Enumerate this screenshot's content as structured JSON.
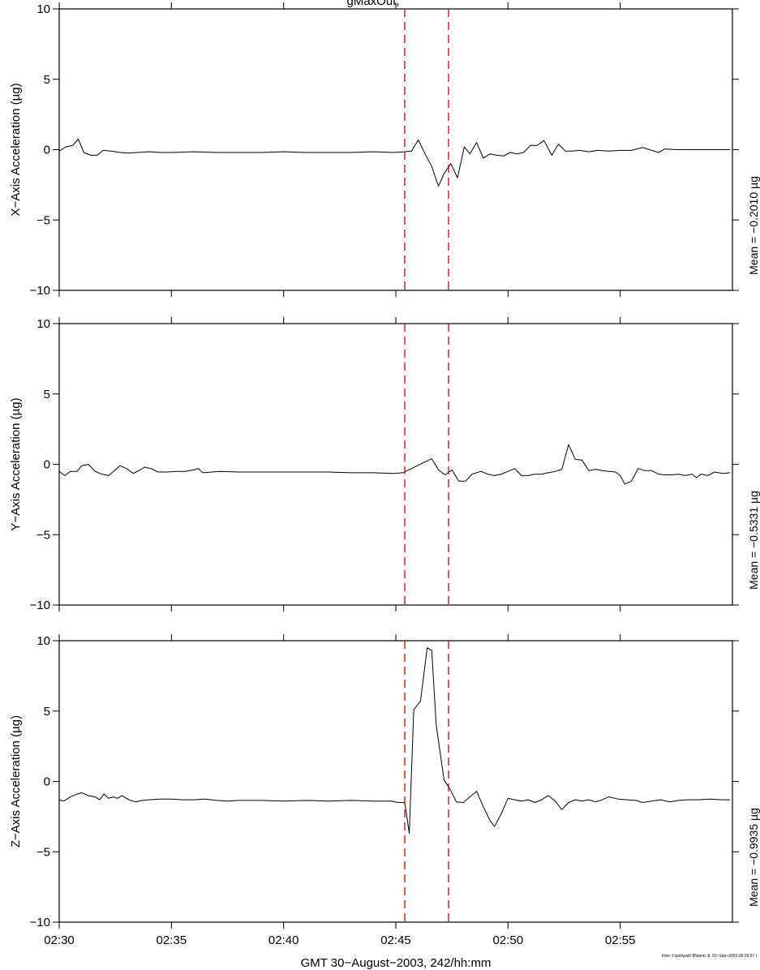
{
  "chart_data": [
    {
      "type": "line",
      "ylabel": "X−Axis Acceleration (µg)",
      "mean_label": "Mean = −0.2010 µg",
      "ylim": [
        -10,
        10
      ],
      "yticks": [
        -10,
        -5,
        0,
        5,
        10
      ],
      "ytick_labels": [
        "−10",
        "−5",
        "0",
        "5",
        "10"
      ],
      "series": [
        {
          "values": [
            [
              0.0,
              -0.1
            ],
            [
              0.3,
              0.2
            ],
            [
              0.6,
              0.3
            ],
            [
              0.85,
              0.75
            ],
            [
              1.1,
              -0.2
            ],
            [
              1.4,
              -0.4
            ],
            [
              1.7,
              -0.4
            ],
            [
              1.95,
              -0.05
            ],
            [
              2.3,
              -0.1
            ],
            [
              2.7,
              -0.2
            ],
            [
              3.1,
              -0.25
            ],
            [
              3.5,
              -0.2
            ],
            [
              4.0,
              -0.15
            ],
            [
              4.5,
              -0.2
            ],
            [
              5.0,
              -0.2
            ],
            [
              6.0,
              -0.15
            ],
            [
              7.0,
              -0.2
            ],
            [
              8.0,
              -0.2
            ],
            [
              9.0,
              -0.2
            ],
            [
              10.0,
              -0.15
            ],
            [
              11.0,
              -0.2
            ],
            [
              12.0,
              -0.2
            ],
            [
              13.0,
              -0.2
            ],
            [
              14.0,
              -0.15
            ],
            [
              14.9,
              -0.2
            ],
            [
              15.4,
              -0.15
            ],
            [
              15.7,
              -0.1
            ],
            [
              16.0,
              0.7
            ],
            [
              16.3,
              -0.3
            ],
            [
              16.6,
              -1.2
            ],
            [
              16.9,
              -2.6
            ],
            [
              17.15,
              -1.7
            ],
            [
              17.45,
              -1.0
            ],
            [
              17.75,
              -2.0
            ],
            [
              18.05,
              0.2
            ],
            [
              18.3,
              -0.3
            ],
            [
              18.6,
              0.5
            ],
            [
              18.9,
              -0.6
            ],
            [
              19.2,
              -0.3
            ],
            [
              19.5,
              -0.4
            ],
            [
              19.8,
              -0.45
            ],
            [
              20.1,
              -0.2
            ],
            [
              20.4,
              -0.3
            ],
            [
              20.7,
              -0.2
            ],
            [
              21.0,
              0.3
            ],
            [
              21.3,
              0.3
            ],
            [
              21.6,
              0.65
            ],
            [
              21.95,
              -0.4
            ],
            [
              22.25,
              0.4
            ],
            [
              22.55,
              -0.1
            ],
            [
              22.85,
              -0.1
            ],
            [
              23.2,
              -0.05
            ],
            [
              23.6,
              -0.15
            ],
            [
              24.0,
              -0.05
            ],
            [
              24.5,
              -0.1
            ],
            [
              25.0,
              -0.05
            ],
            [
              25.5,
              -0.05
            ],
            [
              26.0,
              0.15
            ],
            [
              26.4,
              -0.05
            ],
            [
              26.7,
              -0.2
            ],
            [
              27.0,
              0.05
            ],
            [
              27.5,
              0.0
            ],
            [
              28.0,
              0.0
            ],
            [
              29.0,
              0.0
            ],
            [
              29.9,
              0.0
            ]
          ]
        }
      ]
    },
    {
      "type": "line",
      "ylabel": "Y−Axis Acceleration (µg)",
      "mean_label": "Mean = −0.5331 µg",
      "ylim": [
        -10,
        10
      ],
      "yticks": [
        -10,
        -5,
        0,
        5,
        10
      ],
      "ytick_labels": [
        "−10",
        "−5",
        "0",
        "5",
        "10"
      ],
      "series": [
        {
          "values": [
            [
              0.0,
              -0.5
            ],
            [
              0.25,
              -0.8
            ],
            [
              0.5,
              -0.5
            ],
            [
              0.8,
              -0.5
            ],
            [
              1.0,
              -0.1
            ],
            [
              1.3,
              0.0
            ],
            [
              1.6,
              -0.5
            ],
            [
              1.9,
              -0.7
            ],
            [
              2.2,
              -0.8
            ],
            [
              2.5,
              -0.4
            ],
            [
              2.7,
              -0.1
            ],
            [
              3.0,
              -0.3
            ],
            [
              3.3,
              -0.65
            ],
            [
              3.6,
              -0.4
            ],
            [
              3.8,
              -0.2
            ],
            [
              4.1,
              -0.3
            ],
            [
              4.4,
              -0.55
            ],
            [
              4.8,
              -0.55
            ],
            [
              5.2,
              -0.5
            ],
            [
              5.6,
              -0.5
            ],
            [
              6.0,
              -0.4
            ],
            [
              6.2,
              -0.3
            ],
            [
              6.4,
              -0.6
            ],
            [
              6.8,
              -0.55
            ],
            [
              7.2,
              -0.5
            ],
            [
              8.0,
              -0.55
            ],
            [
              9.0,
              -0.55
            ],
            [
              10.0,
              -0.55
            ],
            [
              11.0,
              -0.55
            ],
            [
              12.0,
              -0.55
            ],
            [
              13.0,
              -0.6
            ],
            [
              14.0,
              -0.6
            ],
            [
              14.9,
              -0.65
            ],
            [
              15.3,
              -0.6
            ],
            [
              15.7,
              -0.3
            ],
            [
              16.2,
              0.1
            ],
            [
              16.6,
              0.4
            ],
            [
              16.9,
              -0.4
            ],
            [
              17.2,
              -0.75
            ],
            [
              17.5,
              -0.4
            ],
            [
              17.8,
              -1.2
            ],
            [
              18.1,
              -1.2
            ],
            [
              18.4,
              -0.7
            ],
            [
              18.8,
              -0.5
            ],
            [
              19.1,
              -0.7
            ],
            [
              19.4,
              -0.8
            ],
            [
              19.7,
              -0.7
            ],
            [
              20.0,
              -0.5
            ],
            [
              20.3,
              -0.3
            ],
            [
              20.6,
              -0.8
            ],
            [
              20.9,
              -0.8
            ],
            [
              21.2,
              -0.7
            ],
            [
              21.5,
              -0.7
            ],
            [
              21.8,
              -0.6
            ],
            [
              22.1,
              -0.5
            ],
            [
              22.4,
              -0.35
            ],
            [
              22.7,
              1.4
            ],
            [
              23.0,
              0.35
            ],
            [
              23.3,
              0.3
            ],
            [
              23.6,
              -0.45
            ],
            [
              23.9,
              -0.35
            ],
            [
              24.2,
              -0.45
            ],
            [
              24.5,
              -0.5
            ],
            [
              24.8,
              -0.55
            ],
            [
              25.0,
              -0.8
            ],
            [
              25.2,
              -1.4
            ],
            [
              25.5,
              -1.2
            ],
            [
              25.8,
              -0.3
            ],
            [
              26.1,
              -0.45
            ],
            [
              26.4,
              -0.45
            ],
            [
              26.7,
              -0.7
            ],
            [
              27.0,
              -0.75
            ],
            [
              27.3,
              -0.75
            ],
            [
              27.6,
              -0.7
            ],
            [
              27.9,
              -0.8
            ],
            [
              28.2,
              -0.7
            ],
            [
              28.4,
              -0.95
            ],
            [
              28.6,
              -0.7
            ],
            [
              28.9,
              -0.8
            ],
            [
              29.2,
              -0.55
            ],
            [
              29.6,
              -0.65
            ],
            [
              29.9,
              -0.6
            ]
          ]
        }
      ]
    },
    {
      "type": "line",
      "ylabel": "Z−Axis Acceleration (µg)",
      "mean_label": "Mean = −0.9935 µg",
      "ylim": [
        -10,
        10
      ],
      "yticks": [
        -10,
        -5,
        0,
        5,
        10
      ],
      "ytick_labels": [
        "−10",
        "−5",
        "0",
        "5",
        "10"
      ],
      "xlabel": "GMT 30−August−2003, 242/hh:mm",
      "xlim": [
        0,
        30
      ],
      "xticks": [
        0,
        5,
        10,
        15,
        20,
        25
      ],
      "xtick_labels": [
        "02:30",
        "02:35",
        "02:40",
        "02:45",
        "02:50",
        "02:55"
      ],
      "series": [
        {
          "values": [
            [
              0.0,
              -1.3
            ],
            [
              0.2,
              -1.4
            ],
            [
              0.5,
              -1.1
            ],
            [
              0.8,
              -0.9
            ],
            [
              1.0,
              -0.8
            ],
            [
              1.3,
              -1.0
            ],
            [
              1.6,
              -1.1
            ],
            [
              1.8,
              -1.3
            ],
            [
              2.0,
              -0.9
            ],
            [
              2.2,
              -1.2
            ],
            [
              2.4,
              -1.1
            ],
            [
              2.6,
              -1.2
            ],
            [
              2.8,
              -1.0
            ],
            [
              3.1,
              -1.3
            ],
            [
              3.4,
              -1.45
            ],
            [
              3.7,
              -1.35
            ],
            [
              4.0,
              -1.3
            ],
            [
              4.5,
              -1.25
            ],
            [
              5.0,
              -1.25
            ],
            [
              5.5,
              -1.3
            ],
            [
              6.0,
              -1.3
            ],
            [
              6.5,
              -1.25
            ],
            [
              7.0,
              -1.35
            ],
            [
              7.5,
              -1.4
            ],
            [
              8.0,
              -1.35
            ],
            [
              9.0,
              -1.35
            ],
            [
              10.0,
              -1.4
            ],
            [
              11.0,
              -1.35
            ],
            [
              12.0,
              -1.4
            ],
            [
              13.0,
              -1.35
            ],
            [
              14.0,
              -1.4
            ],
            [
              14.8,
              -1.4
            ],
            [
              15.1,
              -1.5
            ],
            [
              15.4,
              -1.5
            ],
            [
              15.6,
              -3.7
            ],
            [
              15.8,
              5.1
            ],
            [
              16.1,
              5.7
            ],
            [
              16.4,
              9.5
            ],
            [
              16.6,
              9.3
            ],
            [
              16.8,
              4.0
            ],
            [
              17.15,
              0.1
            ],
            [
              17.4,
              -0.5
            ],
            [
              17.7,
              -1.45
            ],
            [
              18.0,
              -1.5
            ],
            [
              18.3,
              -1.1
            ],
            [
              18.6,
              -0.7
            ],
            [
              18.9,
              -1.8
            ],
            [
              19.2,
              -2.8
            ],
            [
              19.4,
              -3.2
            ],
            [
              19.7,
              -2.3
            ],
            [
              20.0,
              -1.2
            ],
            [
              20.3,
              -1.3
            ],
            [
              20.6,
              -1.4
            ],
            [
              20.9,
              -1.3
            ],
            [
              21.2,
              -1.5
            ],
            [
              21.5,
              -1.3
            ],
            [
              21.8,
              -1.0
            ],
            [
              22.1,
              -1.4
            ],
            [
              22.4,
              -2.0
            ],
            [
              22.7,
              -1.5
            ],
            [
              23.0,
              -1.3
            ],
            [
              23.3,
              -1.4
            ],
            [
              23.6,
              -1.3
            ],
            [
              23.9,
              -1.45
            ],
            [
              24.2,
              -1.3
            ],
            [
              24.5,
              -1.1
            ],
            [
              24.9,
              -1.25
            ],
            [
              25.3,
              -1.3
            ],
            [
              25.7,
              -1.35
            ],
            [
              26.0,
              -1.5
            ],
            [
              26.4,
              -1.4
            ],
            [
              26.8,
              -1.3
            ],
            [
              27.2,
              -1.45
            ],
            [
              27.6,
              -1.35
            ],
            [
              28.0,
              -1.3
            ],
            [
              28.5,
              -1.3
            ],
            [
              29.0,
              -1.25
            ],
            [
              29.5,
              -1.3
            ],
            [
              29.9,
              -1.3
            ]
          ]
        }
      ]
    }
  ],
  "event_markers_x": [
    15.4,
    17.35
  ],
  "colors": {
    "trace": "#000000",
    "event_marker": "#cc0000",
    "axes": "#000000"
  },
  "top_partial_title": "gMaxOut,",
  "footer_note": "from: t:\\pub\\pad\\ $Name: $, 02−Sep−2003,09:09:57.I"
}
